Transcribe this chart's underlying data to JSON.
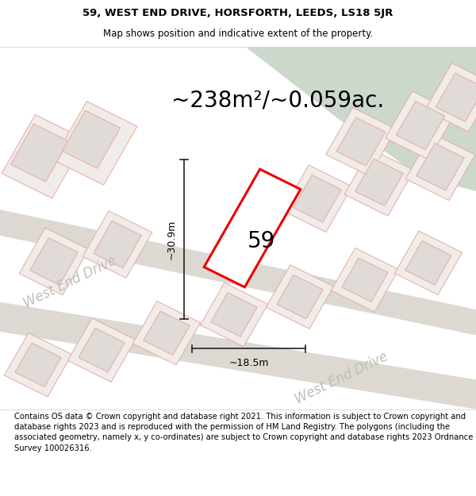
{
  "title_line1": "59, WEST END DRIVE, HORSFORTH, LEEDS, LS18 5JR",
  "title_line2": "Map shows position and indicative extent of the property.",
  "area_text": "~238m²/~0.059ac.",
  "label_59": "59",
  "dim_height": "~30.9m",
  "dim_width": "~18.5m",
  "road_label1": "West End Drive",
  "road_label2": "West End Drive",
  "footer_text": "Contains OS data © Crown copyright and database right 2021. This information is subject to Crown copyright and database rights 2023 and is reproduced with the permission of HM Land Registry. The polygons (including the associated geometry, namely x, y co-ordinates) are subject to Crown copyright and database rights 2023 Ordnance Survey 100026316.",
  "map_bg": "#eeebe7",
  "green_area_color": "#ccd8cc",
  "road_color": "#ddd8d2",
  "plot_fill": "#e8e4e0",
  "plot_outline_color": "#e8a8a8",
  "highlight_color": "#ee0000",
  "dim_line_color": "#222222",
  "road_text_color": "#c0bdb8",
  "title_fontsize": 9.5,
  "subtitle_fontsize": 8.5,
  "area_fontsize": 20,
  "label_fontsize": 20,
  "dim_fontsize": 9,
  "road_fontsize": 12,
  "footer_fontsize": 7.2,
  "ang": 28
}
